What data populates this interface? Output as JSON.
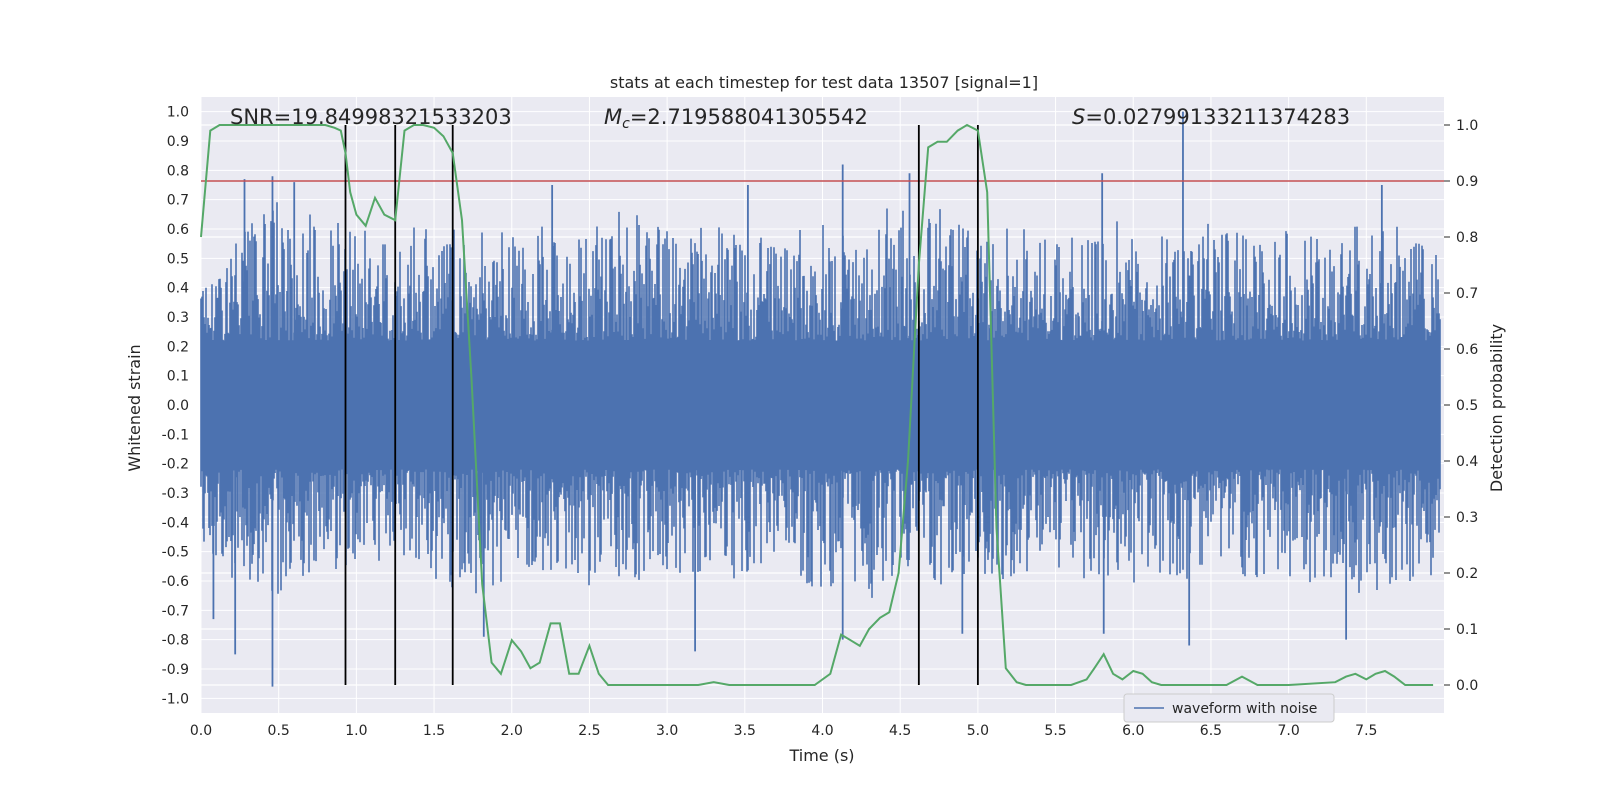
{
  "chart_data": {
    "type": "line",
    "title": "stats at each timestep for test data 13507 [signal=1]",
    "xlabel": "Time (s)",
    "ylabel_left": "Whitened strain",
    "ylabel_right": "Detection probability",
    "xlim": [
      0.0,
      8.0
    ],
    "ylim_left": [
      -1.05,
      1.05
    ],
    "ylim_right": [
      -0.05,
      1.05
    ],
    "x_ticks": [
      "0.0",
      "0.5",
      "1.0",
      "1.5",
      "2.0",
      "2.5",
      "3.0",
      "3.5",
      "4.0",
      "4.5",
      "5.0",
      "5.5",
      "6.0",
      "6.5",
      "7.0",
      "7.5"
    ],
    "y_ticks_left": [
      "1.0",
      "0.9",
      "0.8",
      "0.7",
      "0.6",
      "0.5",
      "0.4",
      "0.3",
      "0.2",
      "0.1",
      "0.0",
      "-0.1",
      "-0.2",
      "-0.3",
      "-0.4",
      "-0.5",
      "-0.6",
      "-0.7",
      "-0.8",
      "-0.9",
      "-1.0"
    ],
    "y_ticks_right": [
      "1.0",
      "0.9",
      "0.8",
      "0.7",
      "0.6",
      "0.5",
      "0.4",
      "0.3",
      "0.2",
      "0.1",
      "0.0"
    ],
    "annotations": {
      "snr": "SNR=19.84998321533203",
      "mc_symbol": "M",
      "mc_sub": "c",
      "mc_value": "=2.719588041305542",
      "s_symbol": "S",
      "s_value": "=0.02799133211374283"
    },
    "threshold": 0.9,
    "vlines_x": [
      0.93,
      1.25,
      1.62,
      4.62,
      5.0
    ],
    "series": [
      {
        "name": "waveform with noise",
        "axis": "left",
        "color": "#4c72b0",
        "envelope_x": [
          0.0,
          0.25,
          0.5,
          0.75,
          1.0,
          1.25,
          1.5,
          1.75,
          2.0,
          2.25,
          2.5,
          2.75,
          3.0,
          3.25,
          3.5,
          3.75,
          4.0,
          4.25,
          4.5,
          4.75,
          5.0,
          5.25,
          5.5,
          5.75,
          6.0,
          6.25,
          6.5,
          6.75,
          7.0,
          7.25,
          7.5,
          7.75,
          7.98
        ],
        "envelope_upper": [
          0.45,
          0.6,
          0.7,
          0.65,
          0.6,
          0.62,
          0.6,
          0.65,
          0.58,
          0.62,
          0.6,
          0.68,
          0.6,
          0.62,
          0.58,
          0.6,
          0.65,
          0.62,
          0.7,
          0.68,
          0.6,
          0.62,
          0.58,
          0.6,
          0.65,
          0.6,
          0.62,
          0.58,
          0.6,
          0.62,
          0.65,
          0.6,
          0.55
        ],
        "envelope_lower": [
          -0.55,
          -0.6,
          -0.65,
          -0.58,
          -0.55,
          -0.6,
          -0.62,
          -0.65,
          -0.6,
          -0.58,
          -0.62,
          -0.6,
          -0.6,
          -0.58,
          -0.6,
          -0.62,
          -0.65,
          -0.68,
          -0.6,
          -0.62,
          -0.6,
          -0.6,
          -0.58,
          -0.6,
          -0.62,
          -0.6,
          -0.58,
          -0.6,
          -0.62,
          -0.6,
          -0.65,
          -0.6,
          -0.6
        ],
        "spikes": [
          {
            "x": 0.28,
            "y": 0.77
          },
          {
            "x": 0.46,
            "y": 0.78
          },
          {
            "x": 0.6,
            "y": 0.76
          },
          {
            "x": 2.26,
            "y": 0.75
          },
          {
            "x": 3.52,
            "y": 0.75
          },
          {
            "x": 4.13,
            "y": 0.82
          },
          {
            "x": 4.56,
            "y": 0.79
          },
          {
            "x": 5.8,
            "y": 0.79
          },
          {
            "x": 6.32,
            "y": 1.0
          },
          {
            "x": 7.6,
            "y": 0.75
          },
          {
            "x": 0.08,
            "y": -0.73
          },
          {
            "x": 0.22,
            "y": -0.85
          },
          {
            "x": 0.46,
            "y": -0.96
          },
          {
            "x": 1.82,
            "y": -0.79
          },
          {
            "x": 3.18,
            "y": -0.84
          },
          {
            "x": 4.13,
            "y": -0.8
          },
          {
            "x": 4.9,
            "y": -0.78
          },
          {
            "x": 5.81,
            "y": -0.78
          },
          {
            "x": 6.36,
            "y": -0.82
          },
          {
            "x": 7.37,
            "y": -0.8
          }
        ]
      },
      {
        "name": "detection probability",
        "axis": "right",
        "color": "#55a868",
        "x": [
          0.0,
          0.06,
          0.12,
          0.2,
          0.3,
          0.4,
          0.5,
          0.6,
          0.7,
          0.8,
          0.86,
          0.9,
          0.93,
          0.96,
          1.0,
          1.06,
          1.12,
          1.18,
          1.25,
          1.31,
          1.37,
          1.43,
          1.5,
          1.56,
          1.62,
          1.68,
          1.74,
          1.81,
          1.87,
          1.93,
          2.0,
          2.06,
          2.12,
          2.18,
          2.25,
          2.31,
          2.37,
          2.43,
          2.5,
          2.56,
          2.62,
          2.7,
          2.8,
          3.0,
          3.2,
          3.3,
          3.4,
          3.6,
          3.8,
          3.95,
          4.05,
          4.12,
          4.18,
          4.24,
          4.3,
          4.37,
          4.43,
          4.49,
          4.55,
          4.62,
          4.68,
          4.74,
          4.8,
          4.87,
          4.93,
          5.0,
          5.06,
          5.12,
          5.18,
          5.25,
          5.31,
          5.4,
          5.6,
          5.7,
          5.75,
          5.81,
          5.87,
          5.93,
          6.0,
          6.06,
          6.12,
          6.18,
          6.25,
          6.4,
          6.6,
          6.7,
          6.8,
          7.0,
          7.3,
          7.37,
          7.43,
          7.5,
          7.56,
          7.62,
          7.68,
          7.75,
          7.81,
          7.87,
          7.93
        ],
        "y": [
          0.8,
          0.99,
          1.0,
          1.0,
          1.0,
          1.0,
          1.0,
          1.0,
          1.0,
          1.0,
          0.995,
          0.99,
          0.95,
          0.88,
          0.84,
          0.82,
          0.87,
          0.84,
          0.83,
          0.99,
          1.0,
          1.0,
          0.995,
          0.98,
          0.95,
          0.83,
          0.55,
          0.18,
          0.04,
          0.02,
          0.08,
          0.06,
          0.03,
          0.04,
          0.11,
          0.11,
          0.02,
          0.02,
          0.07,
          0.02,
          0.0,
          0.0,
          0.0,
          0.0,
          0.0,
          0.005,
          0.0,
          0.0,
          0.0,
          0.0,
          0.02,
          0.09,
          0.08,
          0.07,
          0.1,
          0.12,
          0.13,
          0.2,
          0.4,
          0.75,
          0.96,
          0.97,
          0.97,
          0.99,
          1.0,
          0.99,
          0.88,
          0.28,
          0.03,
          0.005,
          0.0,
          0.0,
          0.0,
          0.01,
          0.03,
          0.055,
          0.02,
          0.01,
          0.025,
          0.02,
          0.005,
          0.0,
          0.0,
          0.0,
          0.0,
          0.015,
          0.0,
          0.0,
          0.005,
          0.015,
          0.02,
          0.01,
          0.02,
          0.025,
          0.015,
          0.0,
          0.0,
          0.0,
          0.0
        ]
      }
    ],
    "legend": {
      "label": "waveform with noise",
      "placement": "lower-right"
    }
  }
}
